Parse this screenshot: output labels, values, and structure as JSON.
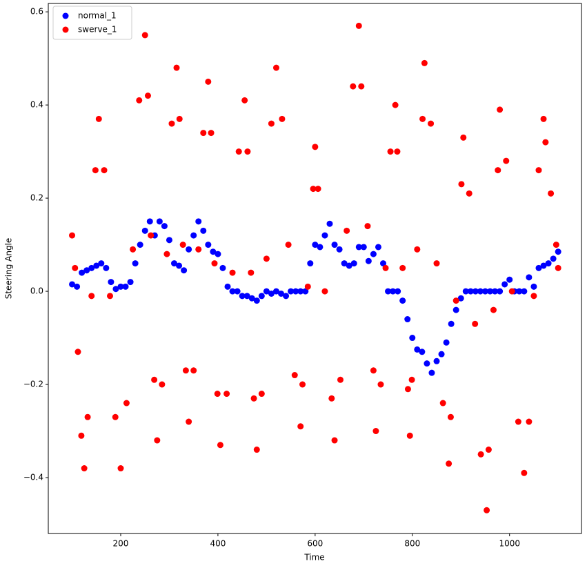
{
  "chart_data": {
    "type": "scatter",
    "x_label": "Time",
    "y_label": "Steering Angle",
    "xlim": [
      51,
      1148
    ],
    "ylim": [
      -0.52,
      0.618
    ],
    "xticks": [
      200,
      400,
      600,
      800,
      1000
    ],
    "yticks": [
      {
        "value": -0.4,
        "label": "−0.4"
      },
      {
        "value": -0.2,
        "label": "−0.2"
      },
      {
        "value": 0,
        "label": "0.0"
      },
      0.2,
      0.4,
      0.6
    ],
    "legend": "upper left",
    "series": [
      {
        "name": "normal_1",
        "color": "#0000ff",
        "x": [
          100,
          110,
          120,
          130,
          140,
          150,
          160,
          170,
          180,
          190,
          200,
          210,
          220,
          230,
          240,
          250,
          260,
          270,
          280,
          290,
          300,
          310,
          320,
          330,
          340,
          350,
          360,
          370,
          380,
          390,
          400,
          410,
          420,
          430,
          440,
          450,
          460,
          470,
          480,
          490,
          500,
          510,
          520,
          530,
          540,
          550,
          560,
          570,
          580,
          590,
          600,
          610,
          620,
          630,
          640,
          650,
          660,
          670,
          680,
          690,
          700,
          710,
          720,
          730,
          740,
          750,
          760,
          770,
          780,
          790,
          800,
          810,
          820,
          830,
          840,
          850,
          860,
          870,
          880,
          890,
          900,
          910,
          920,
          930,
          940,
          950,
          960,
          970,
          980,
          990,
          1000,
          1010,
          1020,
          1030,
          1040,
          1050,
          1060,
          1070,
          1080,
          1090,
          1100
        ],
        "values": [
          0.015,
          0.01,
          0.04,
          0.045,
          0.05,
          0.055,
          0.06,
          0.05,
          0.02,
          0.005,
          0.01,
          0.01,
          0.02,
          0.06,
          0.1,
          0.13,
          0.15,
          0.12,
          0.15,
          0.14,
          0.11,
          0.06,
          0.055,
          0.045,
          0.09,
          0.12,
          0.15,
          0.13,
          0.1,
          0.085,
          0.08,
          0.05,
          0.01,
          0,
          0,
          -0.01,
          -0.01,
          -0.015,
          -0.02,
          -0.01,
          0,
          -0.005,
          0,
          -0.005,
          -0.01,
          0,
          0,
          0,
          0,
          0.06,
          0.1,
          0.095,
          0.12,
          0.145,
          0.1,
          0.09,
          0.06,
          0.055,
          0.06,
          0.095,
          0.095,
          0.065,
          0.08,
          0.095,
          0.06,
          0,
          0,
          0,
          -0.02,
          -0.06,
          -0.1,
          -0.125,
          -0.13,
          -0.155,
          -0.175,
          -0.15,
          -0.135,
          -0.11,
          -0.07,
          -0.04,
          -0.015,
          0,
          0,
          0,
          0,
          0,
          0,
          0,
          0,
          0.015,
          0.025,
          0,
          0,
          0,
          0.03,
          0.01,
          0.05,
          0.055,
          0.06,
          0.07,
          0.085
        ]
      },
      {
        "name": "swerve_1",
        "color": "#ff0000",
        "x": [
          100,
          106,
          112,
          119,
          125,
          132,
          140,
          148,
          155,
          166,
          178,
          189,
          200,
          212,
          225,
          238,
          250,
          256,
          262,
          269,
          275,
          285,
          295,
          305,
          315,
          321,
          328,
          334,
          340,
          350,
          360,
          370,
          380,
          386,
          393,
          399,
          405,
          418,
          430,
          443,
          455,
          461,
          468,
          474,
          480,
          490,
          500,
          510,
          520,
          532,
          545,
          558,
          570,
          574,
          585,
          596,
          600,
          606,
          620,
          634,
          640,
          652,
          665,
          678,
          690,
          695,
          708,
          720,
          725,
          735,
          745,
          755,
          765,
          769,
          780,
          791,
          795,
          799,
          810,
          821,
          825,
          838,
          850,
          863,
          875,
          879,
          890,
          901,
          905,
          917,
          929,
          941,
          953,
          957,
          967,
          976,
          980,
          993,
          1005,
          1018,
          1030,
          1040,
          1050,
          1060,
          1070,
          1074,
          1085,
          1096,
          1100
        ],
        "values": [
          0.12,
          0.05,
          -0.13,
          -0.31,
          -0.38,
          -0.27,
          -0.01,
          0.26,
          0.37,
          0.26,
          -0.01,
          -0.27,
          -0.38,
          -0.24,
          0.09,
          0.41,
          0.55,
          0.42,
          0.12,
          -0.19,
          -0.32,
          -0.2,
          0.08,
          0.36,
          0.48,
          0.37,
          0.1,
          -0.17,
          -0.28,
          -0.17,
          0.09,
          0.34,
          0.45,
          0.34,
          0.06,
          -0.22,
          -0.33,
          -0.22,
          0.04,
          0.3,
          0.41,
          0.3,
          0.04,
          -0.23,
          -0.34,
          -0.22,
          0.07,
          0.36,
          0.48,
          0.37,
          0.1,
          -0.18,
          -0.29,
          -0.2,
          0.01,
          0.22,
          0.31,
          0.22,
          0,
          -0.23,
          -0.32,
          -0.19,
          0.13,
          0.44,
          0.57,
          0.44,
          0.14,
          -0.17,
          -0.3,
          -0.2,
          0.05,
          0.3,
          0.4,
          0.3,
          0.05,
          -0.21,
          -0.31,
          -0.19,
          0.09,
          0.37,
          0.49,
          0.36,
          0.06,
          -0.24,
          -0.37,
          -0.27,
          -0.02,
          0.23,
          0.33,
          0.21,
          -0.07,
          -0.35,
          -0.47,
          -0.34,
          -0.04,
          0.26,
          0.39,
          0.28,
          0,
          -0.28,
          -0.39,
          -0.28,
          -0.01,
          0.26,
          0.37,
          0.32,
          0.21,
          0.1,
          0.05
        ]
      }
    ]
  }
}
